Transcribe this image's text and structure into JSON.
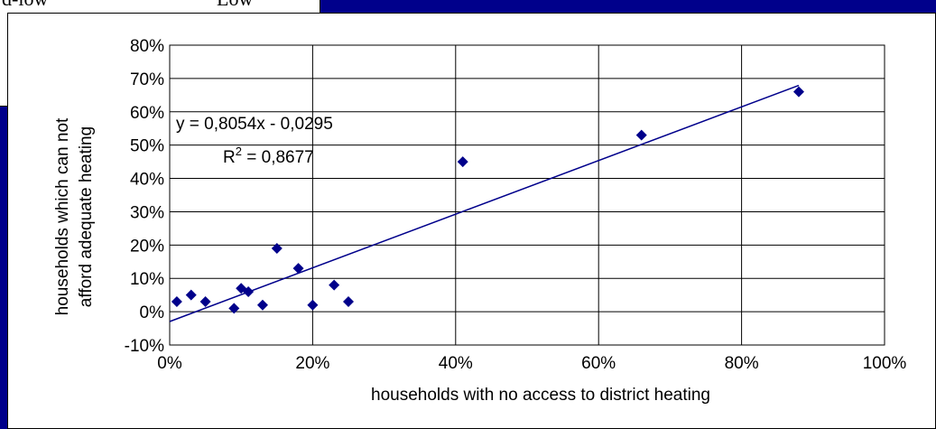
{
  "background": {
    "partial_labels": [
      "d-low",
      "Low"
    ],
    "colors": {
      "frame": "#00008B"
    }
  },
  "chart_data": {
    "type": "scatter",
    "xlabel": "households with no access to district heating",
    "ylabel_lines": [
      "households which can not",
      "afford adequate heating"
    ],
    "xlim": [
      0,
      1
    ],
    "ylim": [
      -0.1,
      0.8
    ],
    "x_ticks": [
      0,
      0.2,
      0.4,
      0.6,
      0.8,
      1.0
    ],
    "x_tick_labels": [
      "0%",
      "20%",
      "40%",
      "60%",
      "80%",
      "100%"
    ],
    "y_ticks": [
      -0.1,
      0,
      0.1,
      0.2,
      0.3,
      0.4,
      0.5,
      0.6,
      0.7,
      0.8
    ],
    "y_tick_labels": [
      "-10%",
      "0%",
      "10%",
      "20%",
      "30%",
      "40%",
      "50%",
      "60%",
      "70%",
      "80%"
    ],
    "grid": true,
    "series": [
      {
        "points": [
          [
            0.01,
            0.03
          ],
          [
            0.03,
            0.05
          ],
          [
            0.05,
            0.03
          ],
          [
            0.09,
            0.01
          ],
          [
            0.1,
            0.07
          ],
          [
            0.11,
            0.06
          ],
          [
            0.13,
            0.02
          ],
          [
            0.15,
            0.19
          ],
          [
            0.18,
            0.13
          ],
          [
            0.2,
            0.02
          ],
          [
            0.23,
            0.08
          ],
          [
            0.25,
            0.03
          ],
          [
            0.41,
            0.45
          ],
          [
            0.66,
            0.53
          ],
          [
            0.88,
            0.66
          ]
        ],
        "color": "#00008B",
        "marker": "diamond"
      }
    ],
    "trendline": {
      "slope": 0.8054,
      "intercept": -0.0295,
      "x_range": [
        0.0,
        0.88
      ],
      "color": "#00008B",
      "equation": "y = 0,8054x - 0,0295",
      "r2_prefix": "R",
      "r2_sup": "2",
      "r2_value": " = 0,8677"
    }
  }
}
